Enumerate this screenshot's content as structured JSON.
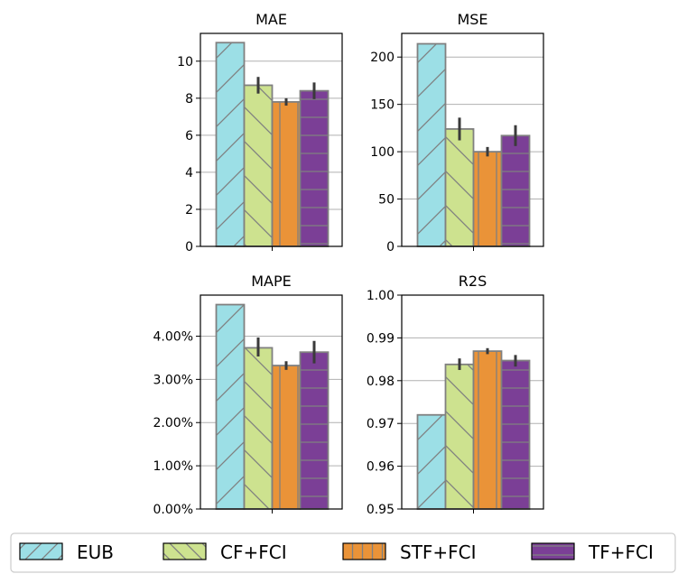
{
  "chart_data": [
    {
      "type": "bar",
      "title": "MAE",
      "xlabel": "",
      "ylabel": "",
      "ylim": [
        0,
        11.5
      ],
      "grid": "y",
      "yticks": [
        0,
        2,
        4,
        6,
        8,
        10
      ],
      "ytick_labels": [
        "0",
        "2",
        "4",
        "6",
        "8",
        "10"
      ],
      "categories": [
        "EUB",
        "CF+FCI",
        "STF+FCI",
        "TF+FCI"
      ],
      "values": [
        11.0,
        8.7,
        7.8,
        8.4
      ],
      "errors": [
        [
          11.0,
          11.0
        ],
        [
          8.25,
          9.15
        ],
        [
          7.6,
          8.0
        ],
        [
          7.95,
          8.85
        ]
      ]
    },
    {
      "type": "bar",
      "title": "MSE",
      "xlabel": "",
      "ylabel": "",
      "ylim": [
        0,
        225
      ],
      "grid": "y",
      "yticks": [
        0,
        50,
        100,
        150,
        200
      ],
      "ytick_labels": [
        "0",
        "50",
        "100",
        "150",
        "200"
      ],
      "categories": [
        "EUB",
        "CF+FCI",
        "STF+FCI",
        "TF+FCI"
      ],
      "values": [
        214,
        124,
        100,
        117
      ],
      "errors": [
        [
          214,
          214
        ],
        [
          112,
          136
        ],
        [
          95,
          105
        ],
        [
          106,
          128
        ]
      ]
    },
    {
      "type": "bar",
      "title": "MAPE",
      "xlabel": "",
      "ylabel": "",
      "ylim": [
        0,
        4.95
      ],
      "grid": "y",
      "yticks": [
        0,
        1,
        2,
        3,
        4
      ],
      "ytick_labels": [
        "0.00%",
        "1.00%",
        "2.00%",
        "3.00%",
        "4.00%"
      ],
      "categories": [
        "EUB",
        "CF+FCI",
        "STF+FCI",
        "TF+FCI"
      ],
      "values": [
        4.73,
        3.73,
        3.32,
        3.63
      ],
      "errors": [
        [
          4.73,
          4.73
        ],
        [
          3.53,
          3.97
        ],
        [
          3.22,
          3.42
        ],
        [
          3.37,
          3.89
        ]
      ]
    },
    {
      "type": "bar",
      "title": "R2S",
      "xlabel": "",
      "ylabel": "",
      "ylim": [
        0.95,
        1.0
      ],
      "grid": "y",
      "yticks": [
        0.95,
        0.96,
        0.97,
        0.98,
        0.99,
        1.0
      ],
      "ytick_labels": [
        "0.95",
        "0.96",
        "0.97",
        "0.98",
        "0.99",
        "1.00"
      ],
      "categories": [
        "EUB",
        "CF+FCI",
        "STF+FCI",
        "TF+FCI"
      ],
      "values": [
        0.972,
        0.9838,
        0.9869,
        0.9847
      ],
      "errors": [
        [
          0.972,
          0.972
        ],
        [
          0.9825,
          0.9852
        ],
        [
          0.9862,
          0.9876
        ],
        [
          0.9833,
          0.986
        ]
      ]
    }
  ],
  "legend": {
    "position": "bottom",
    "items": [
      {
        "label": "EUB",
        "color": "#9cdfe6",
        "hatch": "/"
      },
      {
        "label": "CF+FCI",
        "color": "#cde28f",
        "hatch": "\\"
      },
      {
        "label": "STF+FCI",
        "color": "#ea9338",
        "hatch": "|"
      },
      {
        "label": "TF+FCI",
        "color": "#7b3f96",
        "hatch": "-"
      }
    ]
  },
  "colors": {
    "edge": "#808080",
    "error_bar": "#3a3a3a",
    "grid": "#b0b0b0",
    "hatch": "#808080",
    "axis": "#000000"
  }
}
